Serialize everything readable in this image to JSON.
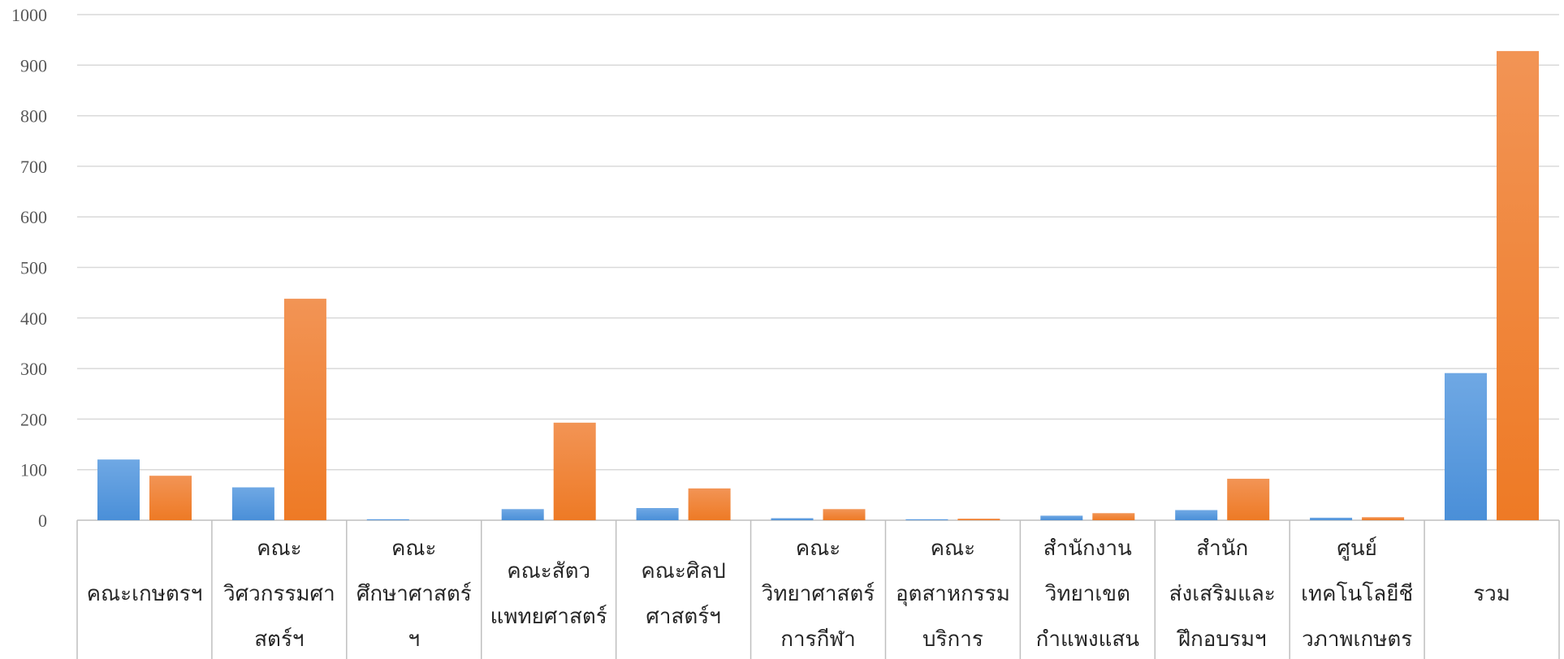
{
  "chart_data": {
    "type": "bar",
    "title": "",
    "xlabel": "",
    "ylabel": "",
    "ylim": [
      0,
      1000
    ],
    "yticks": [
      0,
      100,
      200,
      300,
      400,
      500,
      600,
      700,
      800,
      900,
      1000
    ],
    "grid": true,
    "legend": "none",
    "categories": [
      [
        "คณะเกษตรฯ"
      ],
      [
        "คณะ",
        "วิศวกรรมศา",
        "สตร์ฯ"
      ],
      [
        "คณะ",
        "ศึกษาศาสตร์",
        "ฯ"
      ],
      [
        "คณะสัตว",
        "แพทยศาสตร์"
      ],
      [
        "คณะศิลป",
        "ศาสตร์ฯ"
      ],
      [
        "คณะ",
        "วิทยาศาสตร์",
        "การกีฬา"
      ],
      [
        "คณะ",
        "อุตสาหกรรม",
        "บริการ"
      ],
      [
        "สำนักงาน",
        "วิทยาเขต",
        "กำแพงแสน"
      ],
      [
        "สำนัก",
        "ส่งเสริมและ",
        "ฝึกอบรมฯ"
      ],
      [
        "ศูนย์",
        "เทคโนโลยีชี",
        "วภาพเกษตร"
      ],
      [
        "รวม"
      ]
    ],
    "series": [
      {
        "color": "#4a8fd8",
        "color_light": "#6fa8e4",
        "values": [
          120,
          65,
          2,
          22,
          24,
          4,
          2,
          9,
          20,
          5,
          291
        ]
      },
      {
        "color": "#ee7a25",
        "color_light": "#f29455",
        "values": [
          88,
          438,
          0,
          193,
          63,
          22,
          3,
          14,
          82,
          6,
          928
        ]
      }
    ]
  }
}
